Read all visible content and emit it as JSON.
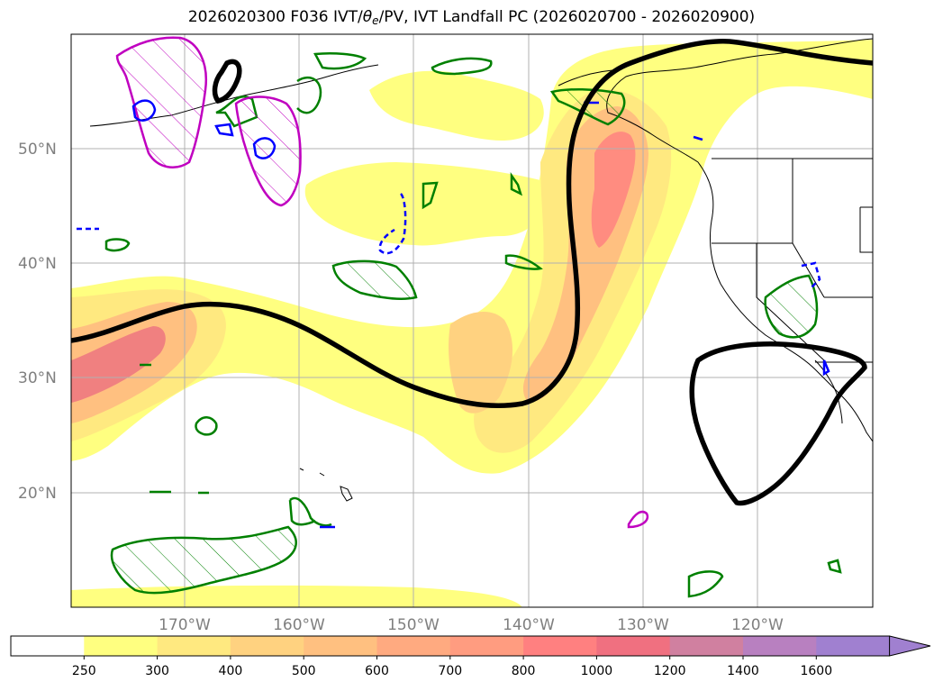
{
  "title": {
    "prefix": "2026020300 F036 IVT/",
    "theta": "θ",
    "theta_sub": "e",
    "suffix": "/PV, IVT Landfall PC (2026020700 - 2026020900)"
  },
  "map": {
    "lat_labels": [
      "50°N",
      "40°N",
      "30°N",
      "20°N"
    ],
    "lon_labels": [
      "170°W",
      "160°W",
      "150°W",
      "140°W",
      "130°W",
      "120°W"
    ]
  },
  "colorbar": {
    "labels": [
      "250",
      "300",
      "400",
      "500",
      "600",
      "700",
      "800",
      "1000",
      "1200",
      "1400",
      "1600"
    ],
    "colors": [
      "#ffffff",
      "#ffff80",
      "#ffe980",
      "#ffd280",
      "#ffc080",
      "#ffaa80",
      "#ff9c80",
      "#ff8080",
      "#f07080",
      "#d080a0",
      "#b880c0",
      "#a080d0"
    ]
  },
  "colors": {
    "ivt_contour_line": "#000000",
    "theta_e_contour": "#008000",
    "pv_contour": "#0000ff",
    "magenta_contour": "#c000c0",
    "grid": "#b0b0b0"
  }
}
